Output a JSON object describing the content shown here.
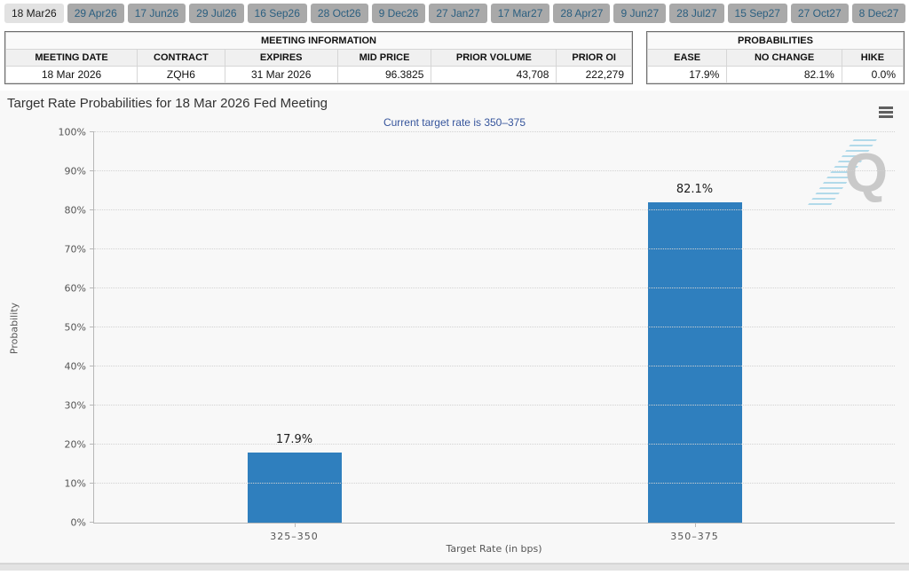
{
  "tabs": [
    {
      "label": "18 Mar26",
      "selected": true
    },
    {
      "label": "29 Apr26",
      "selected": false
    },
    {
      "label": "17 Jun26",
      "selected": false
    },
    {
      "label": "29 Jul26",
      "selected": false
    },
    {
      "label": "16 Sep26",
      "selected": false
    },
    {
      "label": "28 Oct26",
      "selected": false
    },
    {
      "label": "9 Dec26",
      "selected": false
    },
    {
      "label": "27 Jan27",
      "selected": false
    },
    {
      "label": "17 Mar27",
      "selected": false
    },
    {
      "label": "28 Apr27",
      "selected": false
    },
    {
      "label": "9 Jun27",
      "selected": false
    },
    {
      "label": "28 Jul27",
      "selected": false
    },
    {
      "label": "15 Sep27",
      "selected": false
    },
    {
      "label": "27 Oct27",
      "selected": false
    },
    {
      "label": "8 Dec27",
      "selected": false
    }
  ],
  "meeting_info": {
    "title": "MEETING INFORMATION",
    "columns": [
      "MEETING DATE",
      "CONTRACT",
      "EXPIRES",
      "MID PRICE",
      "PRIOR VOLUME",
      "PRIOR OI"
    ],
    "values": [
      "18 Mar 2026",
      "ZQH6",
      "31 Mar 2026",
      "96.3825",
      "43,708",
      "222,279"
    ],
    "align": [
      "center",
      "center",
      "center",
      "right",
      "right",
      "right"
    ],
    "widths": [
      21,
      14,
      18,
      15,
      20,
      12
    ]
  },
  "probabilities": {
    "title": "PROBABILITIES",
    "columns": [
      "EASE",
      "NO CHANGE",
      "HIKE"
    ],
    "values": [
      "17.9%",
      "82.1%",
      "0.0%"
    ],
    "align": [
      "right",
      "right",
      "right"
    ],
    "widths": [
      31,
      45,
      24
    ]
  },
  "chart": {
    "title": "Target Rate Probabilities for 18 Mar 2026 Fed Meeting",
    "subtitle": "Current target rate is 350–375",
    "menu_icon": "hamburger-icon",
    "watermark_letter": "Q"
  },
  "chart_data": {
    "type": "bar",
    "title": "Target Rate Probabilities for 18 Mar 2026 Fed Meeting",
    "subtitle": "Current target rate is 350–375",
    "categories": [
      "325–350",
      "350–375"
    ],
    "values": [
      17.9,
      82.1
    ],
    "data_labels": [
      "17.9%",
      "82.1%"
    ],
    "xlabel": "Target Rate (in bps)",
    "ylabel": "Probability",
    "ylim": [
      0,
      100
    ],
    "ytick_step": 10,
    "ytick_suffix": "%",
    "grid": "dotted horizontal gridlines",
    "legend": "none",
    "bar_color": "#2f7fbe"
  },
  "colors": {
    "bar_blue": "#2f7fbe",
    "subtitle_blue": "#36559c",
    "tab_bg": "#a9a9a9",
    "tab_text": "#2b5f80",
    "tab_selected_bg": "#e2e2e2",
    "chart_bg": "#f8f8f8"
  }
}
